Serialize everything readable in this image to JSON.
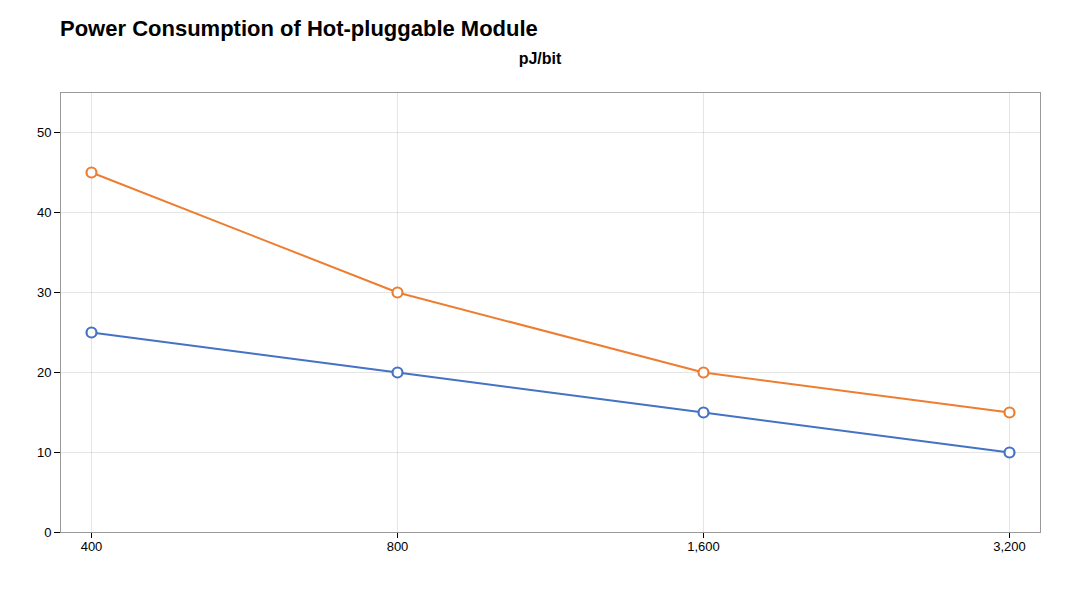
{
  "chart_data": {
    "type": "line",
    "title": "Power Consumption of Hot-pluggable Module",
    "ylabel": "pJ/bit",
    "categories": [
      "400",
      "800",
      "1,600",
      "3,200"
    ],
    "series": [
      {
        "color": "#ED7D31",
        "values": [
          45,
          30,
          20,
          15
        ],
        "marker": "circle"
      },
      {
        "color": "#4472C4",
        "values": [
          25,
          20,
          15,
          10
        ],
        "marker": "circle"
      }
    ],
    "ylim": [
      0,
      55
    ],
    "yticks": [
      0,
      10,
      20,
      30,
      40,
      50
    ],
    "grid": true
  }
}
